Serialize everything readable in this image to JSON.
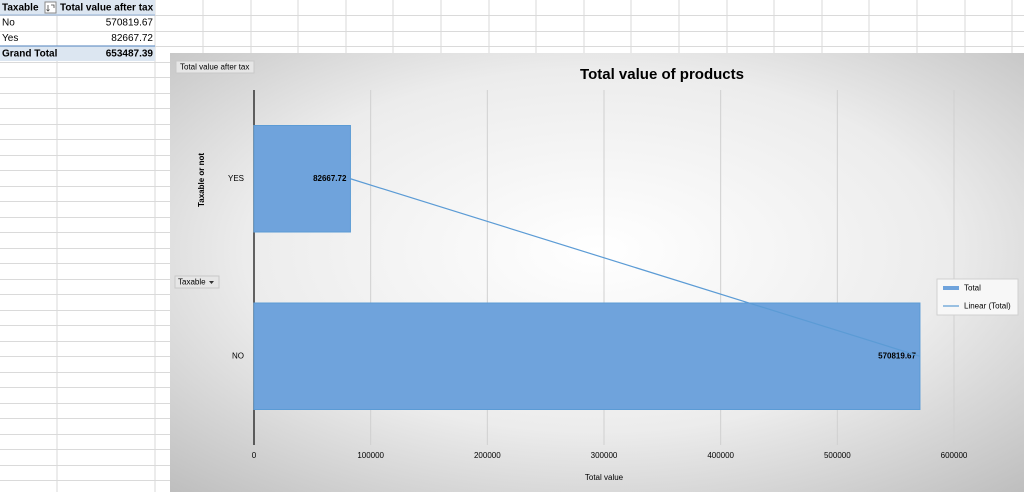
{
  "pivot_table": {
    "header": [
      "Taxable",
      "Total value after tax"
    ],
    "rows": [
      {
        "label": "No",
        "value": 570819.67
      },
      {
        "label": "Yes",
        "value": 82667.72
      }
    ],
    "grand_total": {
      "label": "Grand Total",
      "value": 653487.39
    }
  },
  "chart_data": {
    "type": "bar",
    "orientation": "horizontal",
    "title": "Total value of products",
    "xlabel": "Total value",
    "ylabel": "Taxable or not",
    "value_field_button": "Total value after tax",
    "axis_field_button": "Taxable",
    "categories": [
      "YES",
      "NO"
    ],
    "series": [
      {
        "name": "Total",
        "color": "#6fa3dc",
        "values": [
          82667.72,
          570819.67
        ]
      }
    ],
    "trendline": {
      "name": "Linear (Total)",
      "color": "#5b9bd5"
    },
    "xlim": [
      0,
      600000
    ],
    "xticks": [
      0,
      100000,
      200000,
      300000,
      400000,
      500000,
      600000
    ],
    "grid": true,
    "legend": "right"
  }
}
